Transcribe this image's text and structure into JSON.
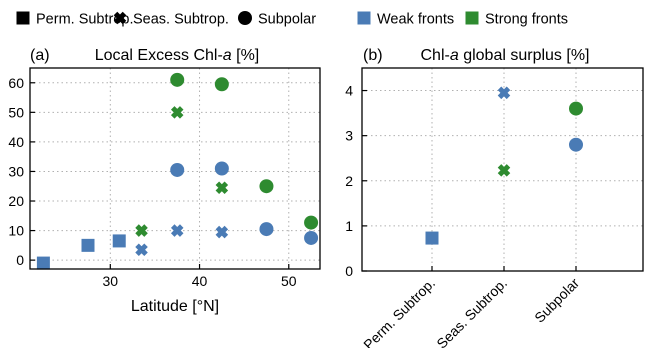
{
  "colors": {
    "weak": "#4a7bb5",
    "strong": "#2e8b30",
    "frame": "#000000",
    "grid": "#b0b0b0"
  },
  "legend": [
    {
      "marker": "square",
      "label": "Perm. Subtrop.",
      "color": "#000000"
    },
    {
      "marker": "cross",
      "label": "Seas. Subtrop.",
      "color": "#000000"
    },
    {
      "marker": "circle",
      "label": "Subpolar",
      "color": "#000000"
    },
    {
      "marker": "square",
      "label": "Weak fronts",
      "color": "#4a7bb5"
    },
    {
      "marker": "square",
      "label": "Strong fronts",
      "color": "#2e8b30"
    }
  ],
  "chart_data": [
    {
      "type": "scatter",
      "panel_label": "(a)",
      "title": "Local Excess Chl-a [%]",
      "xlabel": "Latitude [°N]",
      "ylabel": "",
      "xlim": [
        21,
        53.5
      ],
      "ylim": [
        -3,
        65
      ],
      "xticks": [
        30,
        40,
        50
      ],
      "yticks": [
        0,
        10,
        20,
        30,
        40,
        50,
        60
      ],
      "grid": true,
      "series": [
        {
          "marker": "square",
          "color": "weak",
          "points": [
            [
              22.5,
              -1
            ],
            [
              27.5,
              5
            ],
            [
              31,
              6.5
            ]
          ]
        },
        {
          "marker": "cross",
          "color": "weak",
          "points": [
            [
              33.5,
              3.5
            ],
            [
              37.5,
              10
            ],
            [
              42.5,
              9.5
            ]
          ]
        },
        {
          "marker": "circle",
          "color": "weak",
          "points": [
            [
              37.5,
              30.5
            ],
            [
              42.5,
              31
            ],
            [
              47.5,
              10.5
            ],
            [
              52.5,
              7.5
            ]
          ]
        },
        {
          "marker": "cross",
          "color": "strong",
          "points": [
            [
              33.5,
              10
            ],
            [
              37.5,
              50
            ],
            [
              42.5,
              24.5
            ]
          ]
        },
        {
          "marker": "circle",
          "color": "strong",
          "points": [
            [
              37.5,
              61
            ],
            [
              42.5,
              59.5
            ],
            [
              47.5,
              25
            ],
            [
              52.5,
              12.7
            ]
          ]
        }
      ]
    },
    {
      "type": "scatter",
      "panel_label": "(b)",
      "title": "Chl-a global surplus [%]",
      "xlabel": "",
      "ylabel": "",
      "categories": [
        "Perm. Subtrop.",
        "Seas. Subtrop.",
        "Subpolar"
      ],
      "ylim": [
        0,
        4.5
      ],
      "yticks": [
        0,
        1,
        2,
        3,
        4
      ],
      "grid": true,
      "series": [
        {
          "marker": "square",
          "color": "weak",
          "points": [
            [
              0,
              0.73
            ]
          ]
        },
        {
          "marker": "cross",
          "color": "weak",
          "points": [
            [
              1,
              3.95
            ]
          ]
        },
        {
          "marker": "circle",
          "color": "weak",
          "points": [
            [
              2,
              2.8
            ]
          ]
        },
        {
          "marker": "cross",
          "color": "strong",
          "points": [
            [
              1,
              2.23
            ]
          ]
        },
        {
          "marker": "circle",
          "color": "strong",
          "points": [
            [
              2,
              3.6
            ]
          ]
        }
      ]
    }
  ]
}
